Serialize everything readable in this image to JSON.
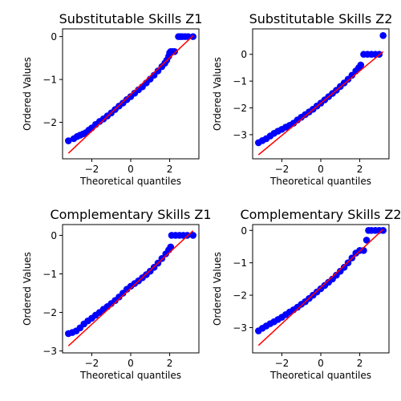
{
  "colors": {
    "points": "#0000ff",
    "fit_line": "#ff0000",
    "axes": "#000000",
    "background": "#ffffff"
  },
  "chart_data": [
    {
      "type": "scatter",
      "title": "Substitutable Skills Z1",
      "xlabel": "Theoretical quantiles",
      "ylabel": "Ordered Values",
      "xlim": [
        -3.5,
        3.5
      ],
      "ylim": [
        -2.85,
        0.18
      ],
      "xticks": [
        -2,
        0,
        2
      ],
      "xtick_labels": [
        "−2",
        "0",
        "2"
      ],
      "yticks": [
        0,
        -1,
        -2
      ],
      "ytick_labels": [
        "0",
        "−1",
        "−2"
      ],
      "grid": false,
      "fit_line": {
        "x": [
          -3.2,
          3.2
        ],
        "y": [
          -2.72,
          0.02
        ]
      },
      "points": {
        "x": [
          -3.2,
          -2.92,
          -2.75,
          -2.6,
          -2.45,
          -2.3,
          -2.15,
          -2.0,
          -1.8,
          -1.6,
          -1.4,
          -1.2,
          -1.0,
          -0.8,
          -0.6,
          -0.4,
          -0.2,
          0.0,
          0.2,
          0.4,
          0.6,
          0.8,
          1.0,
          1.2,
          1.4,
          1.6,
          1.75,
          1.85,
          1.95,
          2.0,
          2.05,
          2.15,
          2.25,
          2.45,
          2.55,
          2.65,
          2.8,
          2.95,
          3.2
        ],
        "y": [
          -2.43,
          -2.38,
          -2.33,
          -2.3,
          -2.27,
          -2.24,
          -2.18,
          -2.13,
          -2.05,
          -1.98,
          -1.92,
          -1.85,
          -1.78,
          -1.7,
          -1.62,
          -1.55,
          -1.47,
          -1.4,
          -1.32,
          -1.24,
          -1.17,
          -1.08,
          -0.99,
          -0.9,
          -0.8,
          -0.7,
          -0.62,
          -0.55,
          -0.46,
          -0.38,
          -0.35,
          -0.35,
          -0.35,
          0.0,
          0.0,
          0.0,
          0.0,
          0.0,
          0.0
        ]
      }
    },
    {
      "type": "scatter",
      "title": "Substitutable Skills Z2",
      "xlabel": "Theoretical quantiles",
      "ylabel": "Ordered Values",
      "xlim": [
        -3.5,
        3.5
      ],
      "ylim": [
        -3.9,
        0.95
      ],
      "xticks": [
        -2,
        0,
        2
      ],
      "xtick_labels": [
        "−2",
        "0",
        "2"
      ],
      "yticks": [
        0,
        -1,
        -2,
        -3
      ],
      "ytick_labels": [
        "0",
        "−1",
        "−2",
        "−3"
      ],
      "grid": false,
      "fit_line": {
        "x": [
          -3.2,
          3.2
        ],
        "y": [
          -3.75,
          0.1
        ]
      },
      "points": {
        "x": [
          -3.2,
          -3.0,
          -2.8,
          -2.6,
          -2.4,
          -2.2,
          -2.0,
          -1.8,
          -1.6,
          -1.4,
          -1.2,
          -1.0,
          -0.8,
          -0.6,
          -0.4,
          -0.2,
          0.0,
          0.2,
          0.4,
          0.6,
          0.8,
          1.0,
          1.2,
          1.4,
          1.6,
          1.8,
          1.95,
          2.05,
          2.2,
          2.4,
          2.6,
          2.8,
          3.0,
          3.2
        ],
        "y": [
          -3.3,
          -3.22,
          -3.15,
          -3.05,
          -2.95,
          -2.87,
          -2.8,
          -2.72,
          -2.65,
          -2.57,
          -2.45,
          -2.35,
          -2.25,
          -2.15,
          -2.05,
          -1.93,
          -1.82,
          -1.7,
          -1.58,
          -1.46,
          -1.34,
          -1.2,
          -1.07,
          -0.93,
          -0.78,
          -0.62,
          -0.5,
          -0.4,
          0.0,
          0.0,
          0.0,
          0.0,
          0.0,
          0.7
        ]
      }
    },
    {
      "type": "scatter",
      "title": "Complementary Skills Z1",
      "xlabel": "Theoretical quantiles",
      "ylabel": "Ordered Values",
      "xlim": [
        -3.5,
        3.5
      ],
      "ylim": [
        -3.05,
        0.28
      ],
      "xticks": [
        -2,
        0,
        2
      ],
      "xtick_labels": [
        "−2",
        "0",
        "2"
      ],
      "yticks": [
        0,
        -1,
        -2,
        -3
      ],
      "ytick_labels": [
        "0",
        "−1",
        "−2",
        "−3"
      ],
      "grid": false,
      "fit_line": {
        "x": [
          -3.2,
          3.2
        ],
        "y": [
          -2.87,
          0.12
        ]
      },
      "points": {
        "x": [
          -3.2,
          -3.0,
          -2.8,
          -2.6,
          -2.4,
          -2.2,
          -2.0,
          -1.8,
          -1.6,
          -1.4,
          -1.2,
          -1.0,
          -0.8,
          -0.6,
          -0.4,
          -0.2,
          0.0,
          0.2,
          0.4,
          0.6,
          0.8,
          1.0,
          1.2,
          1.4,
          1.6,
          1.8,
          1.95,
          2.05,
          2.1,
          2.3,
          2.5,
          2.7,
          2.9,
          3.2
        ],
        "y": [
          -2.55,
          -2.52,
          -2.48,
          -2.4,
          -2.3,
          -2.22,
          -2.15,
          -2.07,
          -2.0,
          -1.92,
          -1.85,
          -1.77,
          -1.69,
          -1.6,
          -1.5,
          -1.4,
          -1.32,
          -1.25,
          -1.18,
          -1.1,
          -1.02,
          -0.93,
          -0.83,
          -0.72,
          -0.6,
          -0.48,
          -0.38,
          -0.3,
          0.0,
          0.0,
          0.0,
          0.0,
          0.0,
          0.0
        ]
      }
    },
    {
      "type": "scatter",
      "title": "Complementary Skills Z2",
      "xlabel": "Theoretical quantiles",
      "ylabel": "Ordered Values",
      "xlim": [
        -3.5,
        3.5
      ],
      "ylim": [
        -3.78,
        0.18
      ],
      "xticks": [
        -2,
        0,
        2
      ],
      "xtick_labels": [
        "−2",
        "0",
        "2"
      ],
      "yticks": [
        0,
        -1,
        -2,
        -3
      ],
      "ytick_labels": [
        "0",
        "−1",
        "−2",
        "−3"
      ],
      "grid": false,
      "fit_line": {
        "x": [
          -3.2,
          3.2
        ],
        "y": [
          -3.55,
          0.03
        ]
      },
      "points": {
        "x": [
          -3.2,
          -3.0,
          -2.8,
          -2.6,
          -2.4,
          -2.2,
          -2.0,
          -1.8,
          -1.6,
          -1.4,
          -1.2,
          -1.0,
          -0.8,
          -0.6,
          -0.4,
          -0.2,
          0.0,
          0.2,
          0.4,
          0.6,
          0.8,
          1.0,
          1.2,
          1.4,
          1.6,
          1.8,
          2.0,
          2.2,
          2.35,
          2.45,
          2.6,
          2.8,
          3.0,
          3.2
        ],
        "y": [
          -3.1,
          -3.02,
          -2.95,
          -2.88,
          -2.82,
          -2.75,
          -2.68,
          -2.6,
          -2.52,
          -2.45,
          -2.37,
          -2.28,
          -2.2,
          -2.1,
          -2.0,
          -1.9,
          -1.8,
          -1.7,
          -1.6,
          -1.5,
          -1.38,
          -1.26,
          -1.14,
          -1.0,
          -0.85,
          -0.7,
          -0.62,
          -0.62,
          -0.3,
          0.0,
          0.0,
          0.0,
          0.0,
          0.0
        ]
      }
    }
  ]
}
